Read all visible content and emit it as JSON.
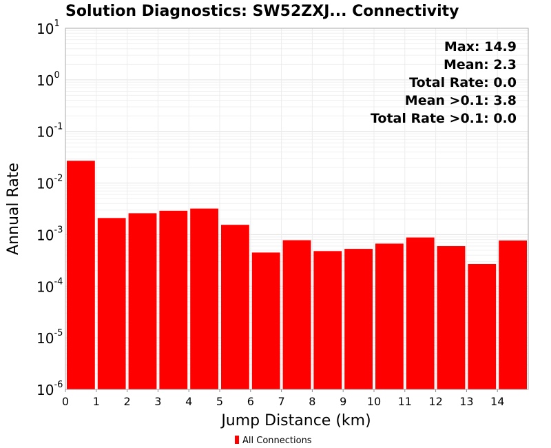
{
  "chart_data": {
    "type": "bar",
    "title": "Solution Diagnostics: SW52ZXJ... Connectivity",
    "xlabel": "Jump Distance (km)",
    "ylabel": "Annual Rate",
    "y_scale": "log",
    "ylim": [
      1e-06,
      10
    ],
    "xlim": [
      0,
      15
    ],
    "x_ticks": [
      "0",
      "1",
      "2",
      "3",
      "4",
      "5",
      "6",
      "7",
      "8",
      "9",
      "10",
      "11",
      "12",
      "13",
      "14"
    ],
    "y_ticks": [
      {
        "base": "10",
        "exp": "-6"
      },
      {
        "base": "10",
        "exp": "-5"
      },
      {
        "base": "10",
        "exp": "-4"
      },
      {
        "base": "10",
        "exp": "-3"
      },
      {
        "base": "10",
        "exp": "-2"
      },
      {
        "base": "10",
        "exp": "-1"
      },
      {
        "base": "10",
        "exp": "0"
      },
      {
        "base": "10",
        "exp": "1"
      }
    ],
    "grid": true,
    "legend_position": "bottom",
    "annotations": [
      "Max: 14.9",
      "Mean: 2.3",
      "Total Rate: 0.0",
      "Mean >0.1: 3.8",
      "Total Rate >0.1: 0.0"
    ],
    "categories": [
      "0-1",
      "1-2",
      "2-3",
      "3-4",
      "4-5",
      "5-6",
      "6-7",
      "7-8",
      "8-9",
      "9-10",
      "10-11",
      "11-12",
      "12-13",
      "13-14",
      "14-15"
    ],
    "x_bins": [
      [
        0,
        1
      ],
      [
        1,
        2
      ],
      [
        2,
        3
      ],
      [
        3,
        4
      ],
      [
        4,
        5
      ],
      [
        5,
        6
      ],
      [
        6,
        7
      ],
      [
        7,
        8
      ],
      [
        8,
        9
      ],
      [
        9,
        10
      ],
      [
        10,
        11
      ],
      [
        11,
        12
      ],
      [
        12,
        13
      ],
      [
        13,
        14
      ],
      [
        14,
        15
      ]
    ],
    "series": [
      {
        "name": "All Connections",
        "color": "#ff0000",
        "values": [
          0.027,
          0.0021,
          0.0026,
          0.0029,
          0.0032,
          0.00155,
          0.00045,
          0.00078,
          0.00048,
          0.00053,
          0.00067,
          0.00088,
          0.0006,
          0.00027,
          0.00077
        ]
      }
    ]
  }
}
